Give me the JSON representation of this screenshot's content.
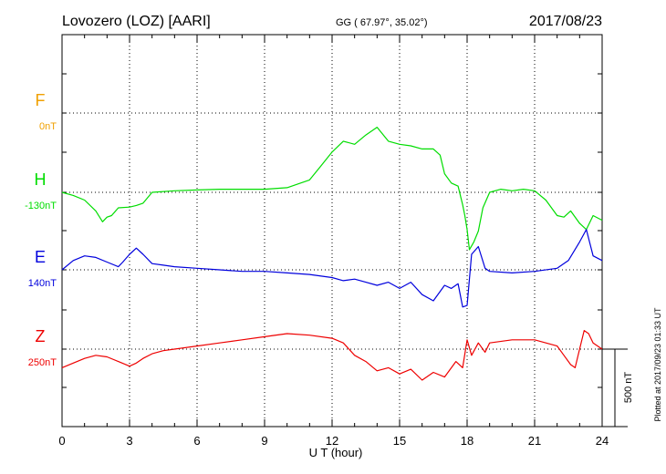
{
  "header": {
    "station": "Lovozero (LOZ)  [AARI]",
    "coords": "GG ( 67.97°,  35.02°)",
    "date": "2017/08/23"
  },
  "side_note": "Plotted at 2017/09/23 01:33 UT",
  "scale_bar": {
    "label": "500 nT",
    "value_nT": 500
  },
  "colors": {
    "F": "#f0a000",
    "H": "#00dd00",
    "E": "#0000dd",
    "Z": "#ee0000",
    "frame": "#000000"
  },
  "chart_data": {
    "type": "line",
    "title": "Lovozero (LOZ)  [AARI]",
    "xlabel": "U T (hour)",
    "xlim": [
      0,
      24
    ],
    "xticks": [
      0,
      3,
      6,
      9,
      12,
      15,
      18,
      21,
      24
    ],
    "xtick_labels": [
      "0",
      "3",
      "6",
      "9",
      "12",
      "15",
      "18",
      "21",
      "24"
    ],
    "grid": true,
    "scale_nT": 500,
    "series": [
      {
        "name": "F",
        "offset_label": "0nT",
        "color": "#f0a000",
        "x": [],
        "y": []
      },
      {
        "name": "H",
        "offset_label": "-130nT",
        "color": "#00dd00",
        "x": [
          0,
          0.5,
          1,
          1.5,
          1.8,
          2,
          2.2,
          2.5,
          3,
          3.3,
          3.6,
          4,
          5,
          6,
          7,
          8,
          9,
          10,
          11,
          11.5,
          12,
          12.5,
          13,
          13.5,
          14,
          14.5,
          15,
          15.5,
          16,
          16.5,
          16.8,
          17,
          17.3,
          17.6,
          17.8,
          17.9,
          18,
          18.1,
          18.3,
          18.5,
          18.7,
          19,
          19.5,
          20,
          20.5,
          21,
          21.5,
          22,
          22.3,
          22.6,
          23,
          23.3,
          23.6,
          24
        ],
        "y": [
          0,
          -20,
          -50,
          -120,
          -190,
          -160,
          -150,
          -100,
          -95,
          -85,
          -70,
          0,
          10,
          15,
          20,
          20,
          20,
          30,
          80,
          170,
          260,
          330,
          310,
          370,
          420,
          330,
          310,
          300,
          280,
          280,
          240,
          120,
          60,
          40,
          -80,
          -150,
          -240,
          -370,
          -320,
          -250,
          -100,
          0,
          20,
          10,
          20,
          10,
          -50,
          -150,
          -160,
          -120,
          -200,
          -240,
          -150,
          -180
        ]
      },
      {
        "name": "E",
        "offset_label": "140nT",
        "color": "#0000dd",
        "x": [
          0,
          0.5,
          1,
          1.5,
          2,
          2.5,
          2.7,
          3,
          3.3,
          3.6,
          4,
          4.5,
          5,
          6,
          7,
          8,
          9,
          10,
          11,
          12,
          12.5,
          13,
          13.5,
          14,
          14.5,
          15,
          15.5,
          16,
          16.5,
          17,
          17.3,
          17.6,
          17.8,
          18,
          18.2,
          18.5,
          18.8,
          19,
          20,
          21,
          22,
          22.5,
          23,
          23.3,
          23.6,
          24
        ],
        "y": [
          0,
          60,
          90,
          80,
          50,
          20,
          50,
          100,
          140,
          100,
          40,
          30,
          20,
          10,
          0,
          -10,
          -10,
          -20,
          -30,
          -50,
          -70,
          -60,
          -80,
          -100,
          -80,
          -120,
          -80,
          -160,
          -200,
          -100,
          -120,
          -90,
          -240,
          -230,
          100,
          150,
          10,
          -10,
          -20,
          -10,
          10,
          60,
          180,
          260,
          90,
          60
        ]
      },
      {
        "name": "Z",
        "offset_label": "250nT",
        "color": "#ee0000",
        "x": [
          0,
          0.5,
          1,
          1.5,
          2,
          2.5,
          3,
          3.3,
          3.6,
          4,
          4.5,
          5,
          6,
          7,
          8,
          9,
          10,
          11,
          12,
          12.5,
          13,
          13.5,
          14,
          14.5,
          15,
          15.5,
          16,
          16.5,
          17,
          17.5,
          17.8,
          18,
          18.2,
          18.5,
          18.8,
          19,
          20,
          21,
          22,
          22.3,
          22.6,
          22.8,
          23,
          23.2,
          23.4,
          23.6,
          24
        ],
        "y": [
          -120,
          -90,
          -60,
          -40,
          -50,
          -80,
          -110,
          -90,
          -60,
          -30,
          -10,
          0,
          20,
          40,
          60,
          80,
          100,
          90,
          70,
          40,
          -40,
          -80,
          -140,
          -120,
          -160,
          -130,
          -200,
          -150,
          -180,
          -80,
          -120,
          60,
          -40,
          40,
          -20,
          40,
          60,
          60,
          20,
          -40,
          -100,
          -120,
          0,
          120,
          100,
          40,
          0
        ]
      }
    ]
  }
}
